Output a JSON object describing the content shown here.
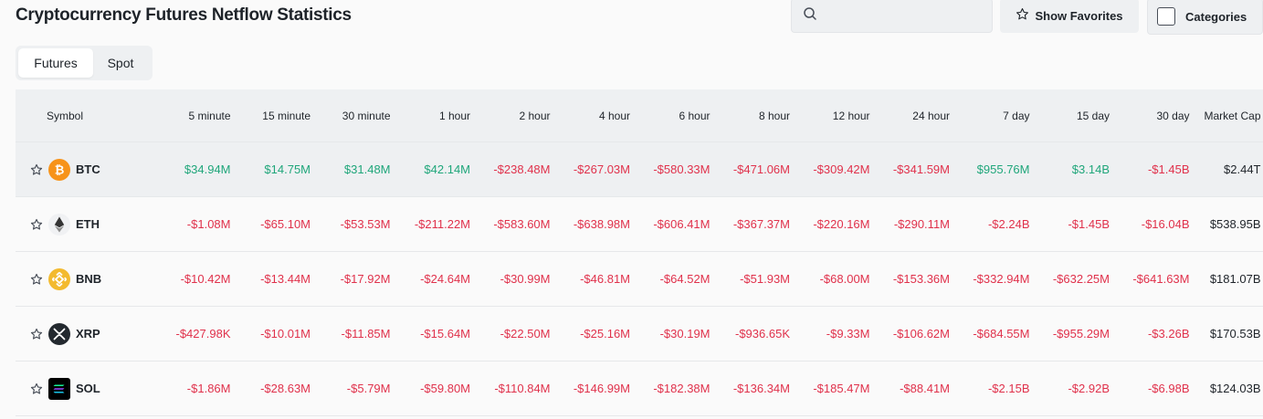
{
  "page": {
    "title": "Cryptocurrency Futures Netflow Statistics"
  },
  "toolbar": {
    "search_placeholder": "",
    "favorites_label": "Show Favorites",
    "categories_label": "Categories"
  },
  "tabs": [
    {
      "label": "Futures",
      "active": true
    },
    {
      "label": "Spot",
      "active": false
    }
  ],
  "colors": {
    "positive": "#1fa67a",
    "negative": "#e0314b",
    "btc": "#f7931a",
    "bnb": "#f3ba2f"
  },
  "table": {
    "headers": [
      "Symbol",
      "5 minute",
      "15 minute",
      "30 minute",
      "1 hour",
      "2 hour",
      "4 hour",
      "6 hour",
      "8 hour",
      "12 hour",
      "24 hour",
      "7 day",
      "15 day",
      "30 day",
      "Market Cap"
    ],
    "rows": [
      {
        "symbol": "BTC",
        "icon": "btc-icon",
        "values": [
          "$34.94M",
          "$14.75M",
          "$31.48M",
          "$42.14M",
          "-$238.48M",
          "-$267.03M",
          "-$580.33M",
          "-$471.06M",
          "-$309.42M",
          "-$341.59M",
          "$955.76M",
          "$3.14B",
          "-$1.45B"
        ],
        "market_cap": "$2.44T"
      },
      {
        "symbol": "ETH",
        "icon": "eth-icon",
        "values": [
          "-$1.08M",
          "-$65.10M",
          "-$53.53M",
          "-$211.22M",
          "-$583.60M",
          "-$638.98M",
          "-$606.41M",
          "-$367.37M",
          "-$220.16M",
          "-$290.11M",
          "-$2.24B",
          "-$1.45B",
          "-$16.04B"
        ],
        "market_cap": "$538.95B"
      },
      {
        "symbol": "BNB",
        "icon": "bnb-icon",
        "values": [
          "-$10.42M",
          "-$13.44M",
          "-$17.92M",
          "-$24.64M",
          "-$30.99M",
          "-$46.81M",
          "-$64.52M",
          "-$51.93M",
          "-$68.00M",
          "-$153.36M",
          "-$332.94M",
          "-$632.25M",
          "-$641.63M"
        ],
        "market_cap": "$181.07B"
      },
      {
        "symbol": "XRP",
        "icon": "xrp-icon",
        "values": [
          "-$427.98K",
          "-$10.01M",
          "-$11.85M",
          "-$15.64M",
          "-$22.50M",
          "-$25.16M",
          "-$30.19M",
          "-$936.65K",
          "-$9.33M",
          "-$106.62M",
          "-$684.55M",
          "-$955.29M",
          "-$3.26B"
        ],
        "market_cap": "$170.53B"
      },
      {
        "symbol": "SOL",
        "icon": "sol-icon",
        "values": [
          "-$1.86M",
          "-$28.63M",
          "-$5.79M",
          "-$59.80M",
          "-$110.84M",
          "-$146.99M",
          "-$182.38M",
          "-$136.34M",
          "-$185.47M",
          "-$88.41M",
          "-$2.15B",
          "-$2.92B",
          "-$6.98B"
        ],
        "market_cap": "$124.03B"
      }
    ]
  }
}
